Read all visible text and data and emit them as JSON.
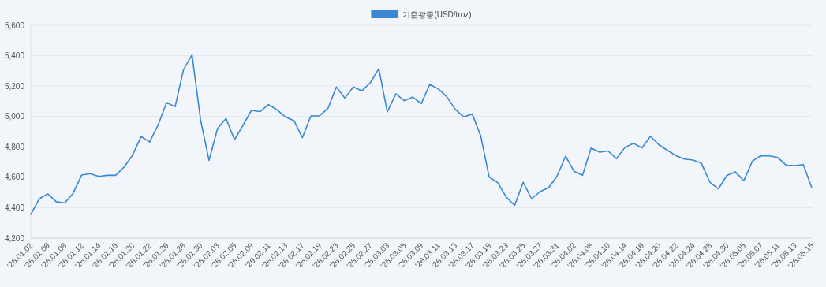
{
  "chart_data": {
    "type": "line",
    "categories": [
      "'26.01.02",
      null,
      "'26.01.06",
      null,
      "'26.01.08",
      null,
      "'26.01.12",
      null,
      "'26.01.14",
      null,
      "'26.01.16",
      null,
      "'26.01.20",
      null,
      "'26.01.22",
      null,
      "'26.01.26",
      null,
      "'26.01.28",
      null,
      "'26.01.30",
      null,
      "'26.02.03",
      null,
      "'26.02.05",
      null,
      "'26.02.09",
      null,
      "'26.02.11",
      null,
      "'26.02.13",
      null,
      "'26.02.17",
      null,
      "'26.02.19",
      null,
      "'26.02.23",
      null,
      "'26.02.25",
      null,
      "'26.02.27",
      null,
      "'26.03.03",
      null,
      "'26.03.05",
      null,
      "'26.03.09",
      null,
      "'26.03.11",
      null,
      "'26.03.13",
      null,
      "'26.03.17",
      null,
      "'26.03.19",
      null,
      "'26.03.23",
      null,
      "'26.03.25",
      null,
      "'26.03.27",
      null,
      "'26.03.31",
      null,
      "'26.04.02",
      null,
      "'26.04.08",
      null,
      "'26.04.10",
      null,
      "'26.04.14",
      null,
      "'26.04.16",
      null,
      "'26.04.20",
      null,
      "'26.04.22",
      null,
      "'26.04.24",
      null,
      "'26.04.28",
      null,
      "'26.04.30",
      null,
      "'26.05.05",
      null,
      "'26.05.07",
      null,
      "'26.05.11",
      null,
      "'26.05.13",
      null,
      "'26.05.15"
    ],
    "series": [
      {
        "name": "기준광종(USD/troz)",
        "color": "#3a87d3",
        "values": [
          4355,
          4458,
          4491,
          4439,
          4431,
          4496,
          4615,
          4624,
          4606,
          4613,
          4613,
          4668,
          4746,
          4868,
          4832,
          4944,
          5092,
          5064,
          5309,
          5405,
          4978,
          4711,
          4921,
          4987,
          4847,
          4942,
          5040,
          5032,
          5078,
          5044,
          4997,
          4973,
          4861,
          5004,
          5004,
          5052,
          5194,
          5121,
          5194,
          5168,
          5223,
          5314,
          5030,
          5149,
          5104,
          5128,
          5085,
          5211,
          5182,
          5130,
          5047,
          4997,
          5016,
          4872,
          4601,
          4565,
          4470,
          4415,
          4567,
          4458,
          4506,
          4532,
          4608,
          4739,
          4639,
          4613,
          4792,
          4765,
          4773,
          4723,
          4797,
          4823,
          4794,
          4870,
          4813,
          4777,
          4742,
          4720,
          4713,
          4692,
          4567,
          4524,
          4612,
          4636,
          4577,
          4706,
          4742,
          4741,
          4730,
          4679,
          4677,
          4684,
          4531
        ]
      }
    ],
    "ylim": [
      4200,
      5600
    ],
    "yticks": [
      {
        "value": 4200,
        "label": "4,200"
      },
      {
        "value": 4400,
        "label": "4,400"
      },
      {
        "value": 4600,
        "label": "4,600"
      },
      {
        "value": 4800,
        "label": "4,800"
      },
      {
        "value": 5000,
        "label": "5,000"
      },
      {
        "value": 5200,
        "label": "5,200"
      },
      {
        "value": 5400,
        "label": "5,400"
      },
      {
        "value": 5600,
        "label": "5,600"
      }
    ],
    "grid": "y",
    "legend": "top",
    "marker": "none",
    "line_style": "solid"
  }
}
